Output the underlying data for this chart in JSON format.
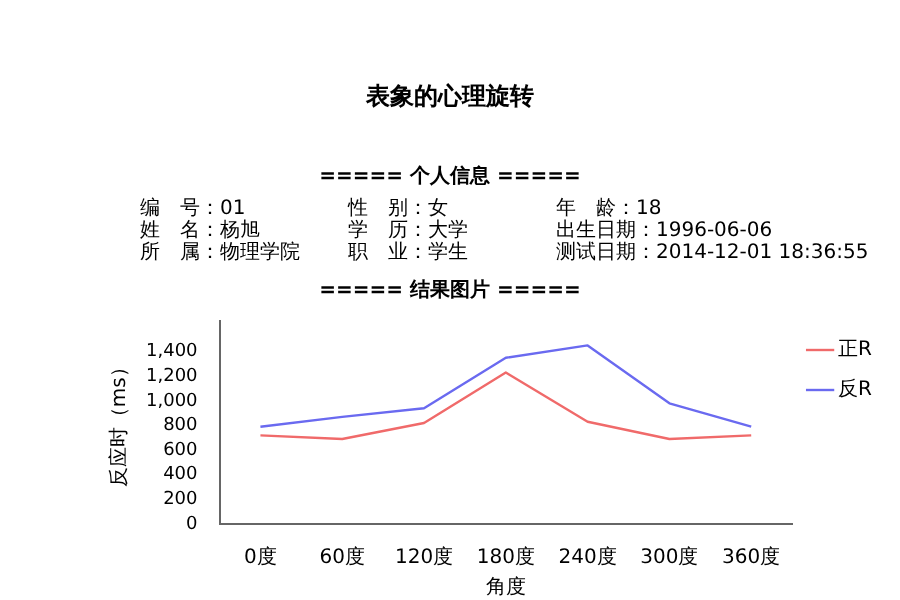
{
  "chart_data": {
    "type": "line",
    "title": "表象的心理旋转",
    "annotations": [
      "===== 个人信息 =====",
      "编　号：01",
      "性　别：女",
      "年　龄：18",
      "姓　名：杨旭",
      "学　历：大学",
      "出生日期：1996-06-06",
      "所　属：物理学院",
      "职　业：学生",
      "测试日期：2014-12-01 18:36:55",
      "===== 结果图片 ====="
    ],
    "xlabel": "角度",
    "ylabel": "反应时（ms）",
    "categories": [
      "0度",
      "60度",
      "120度",
      "180度",
      "240度",
      "300度",
      "360度"
    ],
    "series": [
      {
        "name": "正R",
        "color": "#f06a6a",
        "values": [
          720,
          690,
          820,
          1230,
          830,
          690,
          720
        ]
      },
      {
        "name": "反R",
        "color": "#6a6af0",
        "values": [
          790,
          870,
          940,
          1350,
          1450,
          980,
          790
        ]
      }
    ],
    "ylim": [
      0,
      1650
    ],
    "yticks": [
      0,
      200,
      400,
      600,
      800,
      {
        "value": 1000,
        "label": "1,000"
      },
      {
        "value": 1200,
        "label": "1,200"
      },
      {
        "value": 1400,
        "label": "1,400"
      }
    ],
    "grid": false,
    "legend": "right",
    "marker": "none",
    "line_style": "solid"
  }
}
